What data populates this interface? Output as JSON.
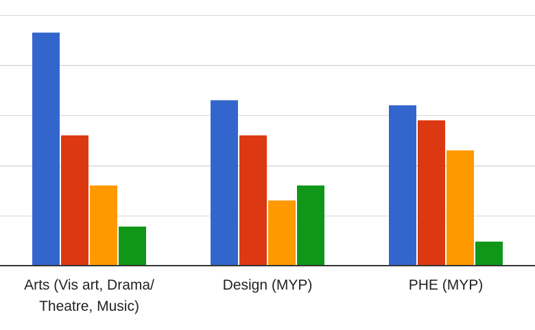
{
  "chart_data": {
    "type": "bar",
    "title": "",
    "xlabel": "",
    "ylabel": "",
    "categories": [
      "Arts (Vis art, Drama/ Theatre, Music)",
      "Design (MYP)",
      "PHE (MYP)"
    ],
    "category_label_lines": [
      [
        "Arts (Vis art, Drama/",
        "Theatre, Music)"
      ],
      [
        "Design (MYP)"
      ],
      [
        "PHE (MYP)"
      ]
    ],
    "series": [
      {
        "color": "#3366cc",
        "values": [
          46.5,
          33.0,
          32.0
        ]
      },
      {
        "color": "#dc3912",
        "values": [
          26.0,
          26.0,
          29.0
        ]
      },
      {
        "color": "#ff9900",
        "values": [
          16.0,
          13.0,
          23.0
        ]
      },
      {
        "color": "#109618",
        "values": [
          7.8,
          16.0,
          4.8
        ]
      }
    ],
    "ylim": [
      0,
      50
    ],
    "grid": true,
    "legend": "none"
  }
}
